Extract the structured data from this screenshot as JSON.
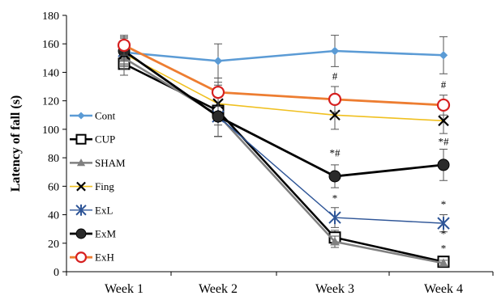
{
  "chart_data": {
    "type": "line",
    "title": "",
    "xlabel": "",
    "ylabel": "Latency of fall (s)",
    "ylim": [
      0,
      180
    ],
    "yticks": [
      "0",
      "20",
      "40",
      "60",
      "80",
      "100",
      "120",
      "140",
      "160",
      "180"
    ],
    "categories": [
      "Week 1",
      "Week 2",
      "Week 3",
      "Week 4"
    ],
    "legend_position": "left",
    "grid": false,
    "series": [
      {
        "name": "Cont",
        "color": "#5b9bd5",
        "marker": "diamond",
        "values": [
          154,
          148,
          155,
          152
        ],
        "errors": [
          10,
          12,
          11,
          13
        ]
      },
      {
        "name": "CUP",
        "color": "#000000",
        "marker": "open-square",
        "values": [
          146,
          113,
          24,
          7
        ],
        "errors": [
          8,
          18,
          5,
          3
        ]
      },
      {
        "name": "SHAM",
        "color": "#808080",
        "marker": "triangle",
        "values": [
          150,
          110,
          21,
          6
        ],
        "errors": [
          8,
          15,
          4,
          2
        ]
      },
      {
        "name": "Fing",
        "color": "#f0c020",
        "marker": "x",
        "values": [
          153,
          118,
          110,
          106
        ],
        "errors": [
          9,
          15,
          10,
          9
        ]
      },
      {
        "name": "ExL",
        "color": "#2e5597",
        "marker": "star",
        "values": [
          155,
          109,
          38,
          34
        ],
        "errors": [
          10,
          14,
          7,
          6
        ]
      },
      {
        "name": "ExM",
        "color": "#000000",
        "marker": "filled-circle",
        "values": [
          155,
          109,
          67,
          75
        ],
        "errors": [
          9,
          14,
          8,
          11
        ]
      },
      {
        "name": "ExH",
        "color": "#ed7d31",
        "marker": "open-circle-red",
        "values": [
          159,
          126,
          121,
          117
        ],
        "errors": [
          7,
          10,
          9,
          7
        ]
      }
    ],
    "annotations": [
      {
        "text": "#",
        "x": "Week 3",
        "y": 135
      },
      {
        "text": "#",
        "x": "Week 4",
        "y": 129
      },
      {
        "text": "*#",
        "x": "Week 3",
        "y": 81
      },
      {
        "text": "*#",
        "x": "Week 4",
        "y": 89
      },
      {
        "text": "*",
        "x": "Week 3",
        "y": 49
      },
      {
        "text": "*",
        "x": "Week 4",
        "y": 45
      },
      {
        "text": "*",
        "x": "Week 4",
        "y": 24
      },
      {
        "text": "*",
        "x": "Week 4",
        "y": 14
      }
    ]
  }
}
